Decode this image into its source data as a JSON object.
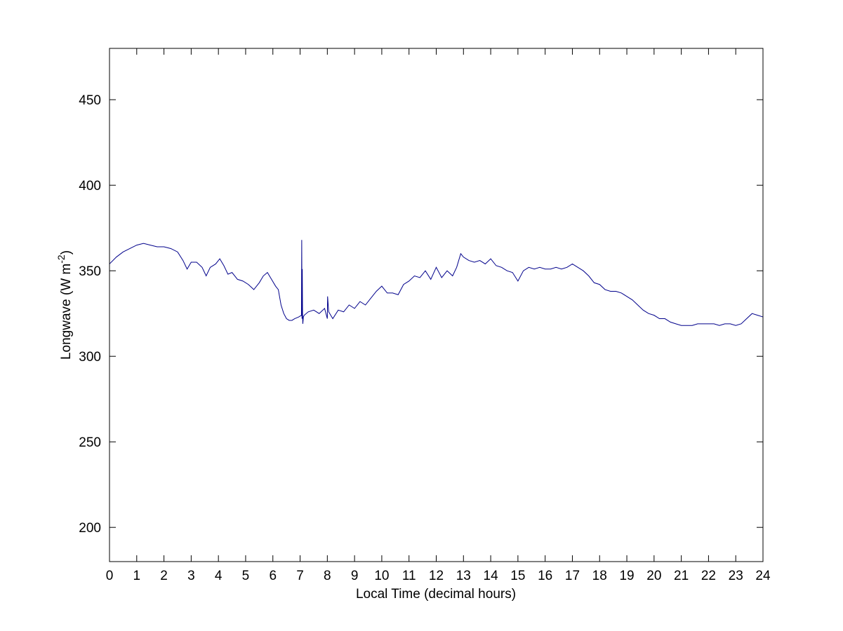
{
  "chart_data": {
    "type": "line",
    "title": "",
    "xlabel": "Local Time (decimal hours)",
    "ylabel_main": "Longwave (W m",
    "ylabel_sup": "-2",
    "ylabel_close": ")",
    "xlim": [
      0,
      24
    ],
    "ylim": [
      180,
      480
    ],
    "grid": false,
    "x_ticks": [
      0,
      1,
      2,
      3,
      4,
      5,
      6,
      7,
      8,
      9,
      10,
      11,
      12,
      13,
      14,
      15,
      16,
      17,
      18,
      19,
      20,
      21,
      22,
      23,
      24
    ],
    "y_ticks": [
      200,
      250,
      300,
      350,
      400,
      450
    ],
    "line_color": "#00008B",
    "series": [
      {
        "x": [
          0,
          0.25,
          0.5,
          0.75,
          1.0,
          1.25,
          1.5,
          1.75,
          2.0,
          2.25,
          2.5,
          2.7,
          2.85,
          3.0,
          3.2,
          3.4,
          3.55,
          3.7,
          3.9,
          4.05,
          4.2,
          4.35,
          4.5,
          4.7,
          4.9,
          5.1,
          5.3,
          5.5,
          5.65,
          5.8,
          5.95,
          6.1,
          6.2,
          6.3,
          6.4,
          6.5,
          6.6,
          6.7,
          6.8,
          6.95,
          7.05,
          7.06,
          7.07,
          7.08,
          7.09,
          7.1,
          7.12,
          7.15,
          7.3,
          7.5,
          7.7,
          7.9,
          8.0,
          8.01,
          8.05,
          8.2,
          8.4,
          8.6,
          8.8,
          9.0,
          9.2,
          9.4,
          9.6,
          9.8,
          10.0,
          10.2,
          10.4,
          10.6,
          10.8,
          11.0,
          11.2,
          11.4,
          11.6,
          11.8,
          12.0,
          12.2,
          12.4,
          12.6,
          12.75,
          12.9,
          13.0,
          13.2,
          13.4,
          13.6,
          13.8,
          14.0,
          14.2,
          14.4,
          14.6,
          14.8,
          15.0,
          15.2,
          15.4,
          15.6,
          15.8,
          16.0,
          16.2,
          16.4,
          16.6,
          16.8,
          17.0,
          17.2,
          17.4,
          17.6,
          17.8,
          18.0,
          18.2,
          18.4,
          18.6,
          18.8,
          19.0,
          19.2,
          19.4,
          19.6,
          19.8,
          20.0,
          20.2,
          20.4,
          20.6,
          20.8,
          21.0,
          21.2,
          21.4,
          21.6,
          21.8,
          22.0,
          22.2,
          22.4,
          22.6,
          22.8,
          23.0,
          23.2,
          23.4,
          23.6,
          23.8,
          24.0
        ],
        "y": [
          354,
          358,
          361,
          363,
          365,
          366,
          365,
          364,
          364,
          363,
          361,
          356,
          351,
          355,
          355,
          352,
          347,
          352,
          354,
          357,
          353,
          348,
          349,
          345,
          344,
          342,
          339,
          343,
          347,
          349,
          345,
          341,
          339,
          330,
          325,
          322,
          321,
          321,
          322,
          323,
          324,
          368,
          322,
          351,
          325,
          319,
          323,
          324,
          326,
          327,
          325,
          328,
          322,
          335,
          326,
          322,
          327,
          326,
          330,
          328,
          332,
          330,
          334,
          338,
          341,
          337,
          337,
          336,
          342,
          344,
          347,
          346,
          350,
          345,
          352,
          346,
          350,
          347,
          352,
          360,
          358,
          356,
          355,
          356,
          354,
          357,
          353,
          352,
          350,
          349,
          344,
          350,
          352,
          351,
          352,
          351,
          351,
          352,
          351,
          352,
          354,
          352,
          350,
          347,
          343,
          342,
          339,
          338,
          338,
          337,
          335,
          333,
          330,
          327,
          325,
          324,
          322,
          322,
          320,
          319,
          318,
          318,
          318,
          319,
          319,
          319,
          319,
          318,
          319,
          319,
          318,
          319,
          322,
          325,
          324,
          323
        ]
      }
    ]
  }
}
